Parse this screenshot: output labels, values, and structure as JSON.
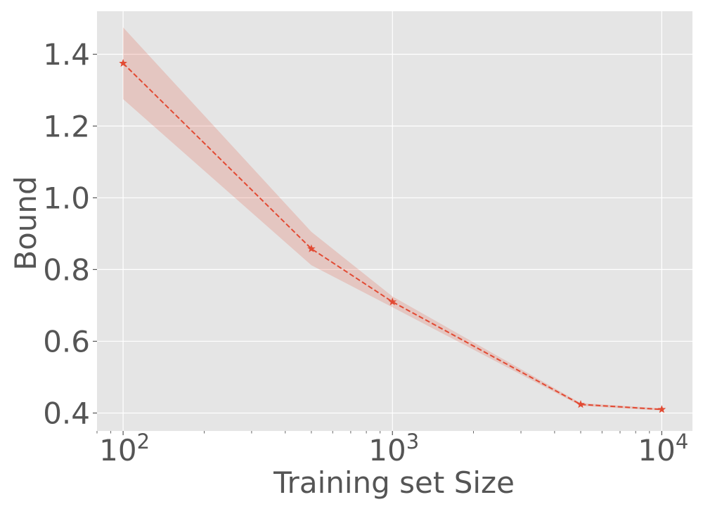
{
  "chart_data": {
    "type": "line",
    "xscale": "log",
    "xlabel": "Training set Size",
    "ylabel": "Bound",
    "xlim": [
      80,
      13000
    ],
    "ylim": [
      0.35,
      1.52
    ],
    "grid": true,
    "x_ticks": [
      {
        "value": 100,
        "base": "10",
        "exp": "2"
      },
      {
        "value": 1000,
        "base": "10",
        "exp": "3"
      },
      {
        "value": 10000,
        "base": "10",
        "exp": "4"
      }
    ],
    "y_ticks": [
      {
        "value": 0.4,
        "label": "0.4"
      },
      {
        "value": 0.6,
        "label": "0.6"
      },
      {
        "value": 0.8,
        "label": "0.8"
      },
      {
        "value": 1.0,
        "label": "1.0"
      },
      {
        "value": 1.2,
        "label": "1.2"
      },
      {
        "value": 1.4,
        "label": "1.4"
      }
    ],
    "series": [
      {
        "x": [
          100,
          500,
          1000,
          5000,
          10000
        ],
        "y": [
          1.375,
          0.858,
          0.71,
          0.424,
          0.41
        ],
        "lower": [
          1.275,
          0.812,
          0.695,
          0.42,
          0.407
        ],
        "upper": [
          1.475,
          0.905,
          0.725,
          0.428,
          0.413
        ],
        "color": "#e24a33",
        "band_color": "#e24a33",
        "line_style": "dashed",
        "marker": "star"
      }
    ],
    "colors": {
      "plot_background": "#e5e5e5",
      "grid": "#ffffff",
      "text": "#555555"
    }
  }
}
